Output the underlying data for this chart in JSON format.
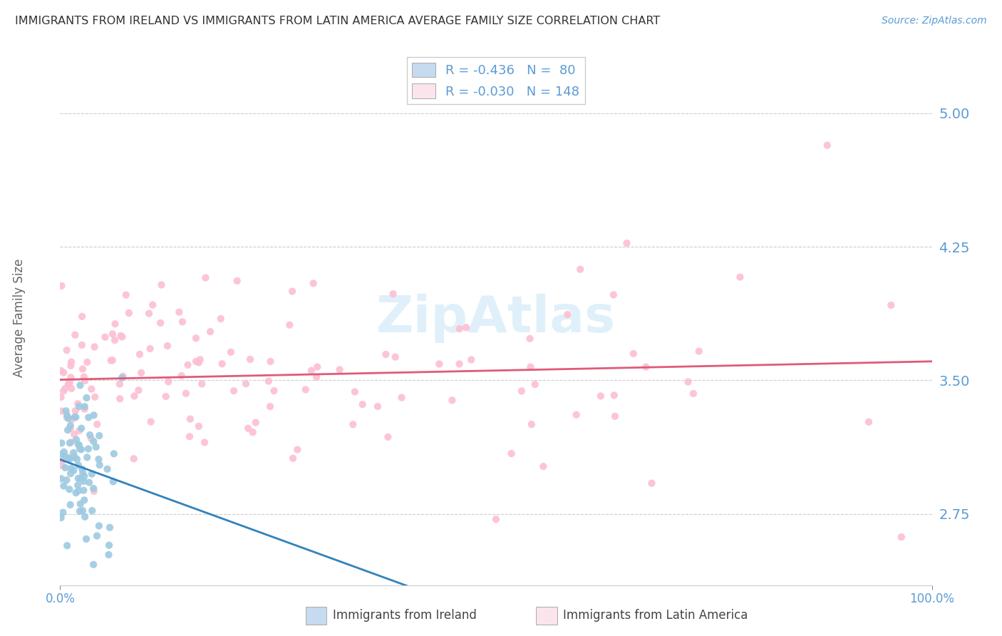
{
  "title": "IMMIGRANTS FROM IRELAND VS IMMIGRANTS FROM LATIN AMERICA AVERAGE FAMILY SIZE CORRELATION CHART",
  "source": "Source: ZipAtlas.com",
  "ylabel": "Average Family Size",
  "xlim": [
    0,
    1.0
  ],
  "ylim": [
    2.35,
    5.35
  ],
  "yticks": [
    2.75,
    3.5,
    4.25,
    5.0
  ],
  "xticks": [
    0.0,
    1.0
  ],
  "xticklabels": [
    "0.0%",
    "100.0%"
  ],
  "r_ireland": -0.436,
  "n_ireland": 80,
  "r_latam": -0.03,
  "n_latam": 148,
  "color_ireland_scatter": "#9ecae1",
  "color_latam_scatter": "#fcbfd2",
  "color_ireland_line": "#3182bd",
  "color_latam_line": "#e05a7a",
  "color_ireland_legend": "#c6dbef",
  "color_latam_legend": "#fce4ec",
  "axis_label_color": "#5b9bd5",
  "title_color": "#333333",
  "grid_color": "#cccccc",
  "watermark": "ZipAtlas",
  "watermark_color": "#d0e8f8",
  "bottom_label_ireland": "Immigrants from Ireland",
  "bottom_label_latam": "Immigrants from Latin America"
}
